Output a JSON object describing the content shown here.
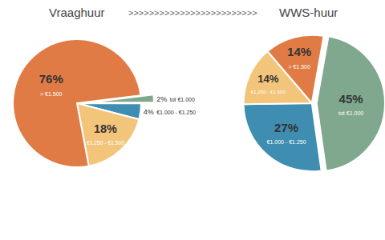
{
  "chart_data": [
    {
      "type": "pie",
      "title": "Vraaghuur",
      "categories": [
        "tot €1.000",
        "€1.000 - €1.250",
        "€1.250 - €1.500",
        "> €1.500"
      ],
      "values": [
        2,
        4,
        18,
        76
      ],
      "value_labels": [
        "2%",
        "4%",
        "18%",
        "76%"
      ],
      "colors": [
        "#7fa88e",
        "#3f8db0",
        "#f2c57a",
        "#e07b45"
      ],
      "data_labels": true
    },
    {
      "type": "pie",
      "title": "WWS-huur",
      "subtitle": ">>>>>>>>>>>>>>>>>>>>>>>>>",
      "categories": [
        "tot €1.000",
        "€1.000 - €1.250",
        "€1.250 - €1.500",
        "> €1.500"
      ],
      "values": [
        45,
        27,
        14,
        14
      ],
      "value_labels": [
        "45%",
        "27%",
        "14%",
        "14%"
      ],
      "colors": [
        "#7fa88e",
        "#3f8db0",
        "#f2c57a",
        "#e07b45"
      ],
      "data_labels": true
    }
  ]
}
